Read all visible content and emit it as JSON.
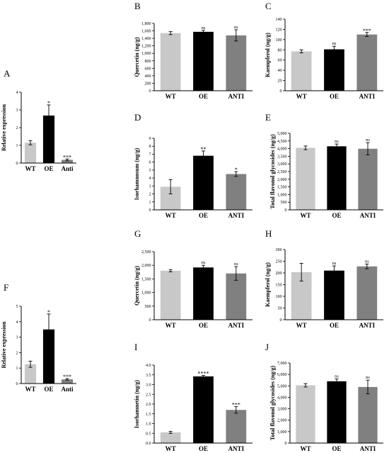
{
  "chart_data": [
    {
      "id": "A",
      "type": "bar",
      "panel_label": "A",
      "categories": [
        "WT",
        "OE",
        "Anti"
      ],
      "values": [
        1.15,
        2.68,
        0.18
      ],
      "errors": [
        0.12,
        0.6,
        0.05
      ],
      "significance": [
        "",
        "*",
        "***"
      ],
      "bar_colors": [
        "#c8c8c8",
        "#000000",
        "#808080"
      ],
      "ylabel": "Relative expression",
      "ylim": [
        0,
        4
      ],
      "yticks": [
        0,
        1,
        2,
        3,
        4
      ],
      "ytick_labels": [
        "0",
        "1",
        "2",
        "3",
        "4"
      ]
    },
    {
      "id": "B",
      "type": "bar",
      "panel_label": "B",
      "categories": [
        "WT",
        "OE",
        "ANTI"
      ],
      "values": [
        1540,
        1575,
        1480
      ],
      "errors": [
        40,
        40,
        150
      ],
      "significance": [
        "",
        "ns",
        "ns"
      ],
      "bar_colors": [
        "#c8c8c8",
        "#000000",
        "#808080"
      ],
      "ylabel": "Quercetin (ng/g)",
      "ylim": [
        0,
        1800
      ],
      "yticks": [
        0,
        200,
        400,
        600,
        800,
        1000,
        1200,
        1400,
        1600,
        1800
      ],
      "ytick_labels": [
        "0",
        "200",
        "400",
        "600",
        "800",
        "1,000",
        "1,200",
        "1,400",
        "1,600",
        "1,800"
      ]
    },
    {
      "id": "C",
      "type": "bar",
      "panel_label": "C",
      "categories": [
        "WT",
        "OE",
        "ANTI"
      ],
      "values": [
        77,
        81,
        110
      ],
      "errors": [
        3,
        6,
        4
      ],
      "significance": [
        "",
        "ns",
        "***"
      ],
      "bar_colors": [
        "#c8c8c8",
        "#000000",
        "#808080"
      ],
      "ylabel": "Kaempferol (ng/g)",
      "ylim": [
        0,
        140
      ],
      "yticks": [
        0,
        20,
        40,
        60,
        80,
        100,
        120,
        140
      ],
      "ytick_labels": [
        "0",
        "20",
        "40",
        "60",
        "80",
        "100",
        "120",
        "140"
      ]
    },
    {
      "id": "D",
      "type": "bar",
      "panel_label": "D",
      "categories": [
        "WT",
        "OE",
        "ANTI"
      ],
      "values": [
        2.9,
        6.8,
        4.5
      ],
      "errors": [
        0.9,
        0.6,
        0.3
      ],
      "significance": [
        "",
        "**",
        "*"
      ],
      "bar_colors": [
        "#c8c8c8",
        "#000000",
        "#808080"
      ],
      "ylabel": "Isorhamnosum (ng/g)",
      "ylim": [
        0,
        9
      ],
      "yticks": [
        0,
        1,
        2,
        3,
        4,
        5,
        6,
        7,
        8,
        9
      ],
      "ytick_labels": [
        "0",
        "1",
        "2",
        "3",
        "4",
        "5",
        "6",
        "7",
        "8",
        "9"
      ]
    },
    {
      "id": "E",
      "type": "bar",
      "panel_label": "E",
      "categories": [
        "WT",
        "OE",
        "ANTI"
      ],
      "values": [
        4050,
        4150,
        3990
      ],
      "errors": [
        120,
        150,
        400
      ],
      "significance": [
        "",
        "ns",
        "ns"
      ],
      "bar_colors": [
        "#c8c8c8",
        "#000000",
        "#808080"
      ],
      "ylabel": "Total flavonol glycosides (ng/g)",
      "ylim": [
        0,
        5000
      ],
      "yticks": [
        0,
        500,
        1000,
        1500,
        2000,
        2500,
        3000,
        3500,
        4000,
        4500,
        5000
      ],
      "ytick_labels": [
        "0",
        "500",
        "1,000",
        "1,500",
        "2,000",
        "2,500",
        "3,000",
        "3,500",
        "4,000",
        "4,500",
        "5,000"
      ]
    },
    {
      "id": "F",
      "type": "bar",
      "panel_label": "F",
      "categories": [
        "WT",
        "OE",
        "Anti"
      ],
      "values": [
        1.25,
        3.5,
        0.27
      ],
      "errors": [
        0.2,
        1.0,
        0.05
      ],
      "significance": [
        "",
        "*",
        "***"
      ],
      "bar_colors": [
        "#c8c8c8",
        "#000000",
        "#808080"
      ],
      "ylabel": "Relative expression",
      "ylim": [
        0,
        5
      ],
      "yticks": [
        0,
        1,
        2,
        3,
        4,
        5
      ],
      "ytick_labels": [
        "0",
        "1",
        "2",
        "3",
        "4",
        "5"
      ]
    },
    {
      "id": "G",
      "type": "bar",
      "panel_label": "G",
      "categories": [
        "WT",
        "OE",
        "ANTI"
      ],
      "values": [
        1800,
        1920,
        1700
      ],
      "errors": [
        40,
        80,
        250
      ],
      "significance": [
        "",
        "ns",
        "ns"
      ],
      "bar_colors": [
        "#c8c8c8",
        "#000000",
        "#808080"
      ],
      "ylabel": "Quercetin (ng/g)",
      "ylim": [
        0,
        2500
      ],
      "yticks": [
        0,
        500,
        1000,
        1500,
        2000,
        2500
      ],
      "ytick_labels": [
        "0",
        "500",
        "1,000",
        "1,500",
        "2,000",
        "2,500"
      ]
    },
    {
      "id": "H",
      "type": "bar",
      "panel_label": "H",
      "categories": [
        "WT",
        "OE",
        "ANTI"
      ],
      "values": [
        203,
        210,
        228
      ],
      "errors": [
        38,
        20,
        10
      ],
      "significance": [
        "",
        "ns",
        "ns"
      ],
      "bar_colors": [
        "#c8c8c8",
        "#000000",
        "#808080"
      ],
      "ylabel": "Kaempferol (ng/g)",
      "ylim": [
        0,
        300
      ],
      "yticks": [
        0,
        50,
        100,
        150,
        200,
        250,
        300
      ],
      "ytick_labels": [
        "0",
        "50",
        "100",
        "150",
        "200",
        "250",
        "300"
      ]
    },
    {
      "id": "I",
      "type": "bar",
      "panel_label": "I",
      "categories": [
        "WT",
        "OE",
        "ANTI"
      ],
      "values": [
        0.55,
        3.42,
        1.7
      ],
      "errors": [
        0.05,
        0.05,
        0.17
      ],
      "significance": [
        "",
        "****",
        "***"
      ],
      "bar_colors": [
        "#c8c8c8",
        "#000000",
        "#808080"
      ],
      "ylabel": "Isorhamnetin (ng/g)",
      "ylim": [
        0,
        4
      ],
      "yticks": [
        0,
        0.5,
        1,
        1.5,
        2,
        2.5,
        3,
        3.5,
        4
      ],
      "ytick_labels": [
        "0.0",
        "0.5",
        "1.0",
        "1.5",
        "2.0",
        "2.5",
        "3.0",
        "3.5",
        "4.0"
      ]
    },
    {
      "id": "J",
      "type": "bar",
      "panel_label": "J",
      "categories": [
        "WT",
        "OE",
        "ANTI"
      ],
      "values": [
        5050,
        5400,
        4900
      ],
      "errors": [
        150,
        200,
        600
      ],
      "significance": [
        "",
        "ns",
        "ns"
      ],
      "bar_colors": [
        "#c8c8c8",
        "#000000",
        "#808080"
      ],
      "ylabel": "Total flavonol glycosides (ng/g)",
      "ylim": [
        0,
        7000
      ],
      "yticks": [
        0,
        1000,
        2000,
        3000,
        4000,
        5000,
        6000,
        7000
      ],
      "ytick_labels": [
        "0",
        "1,000",
        "2,000",
        "3,000",
        "4,000",
        "5,000",
        "6,000",
        "7,000"
      ]
    }
  ]
}
